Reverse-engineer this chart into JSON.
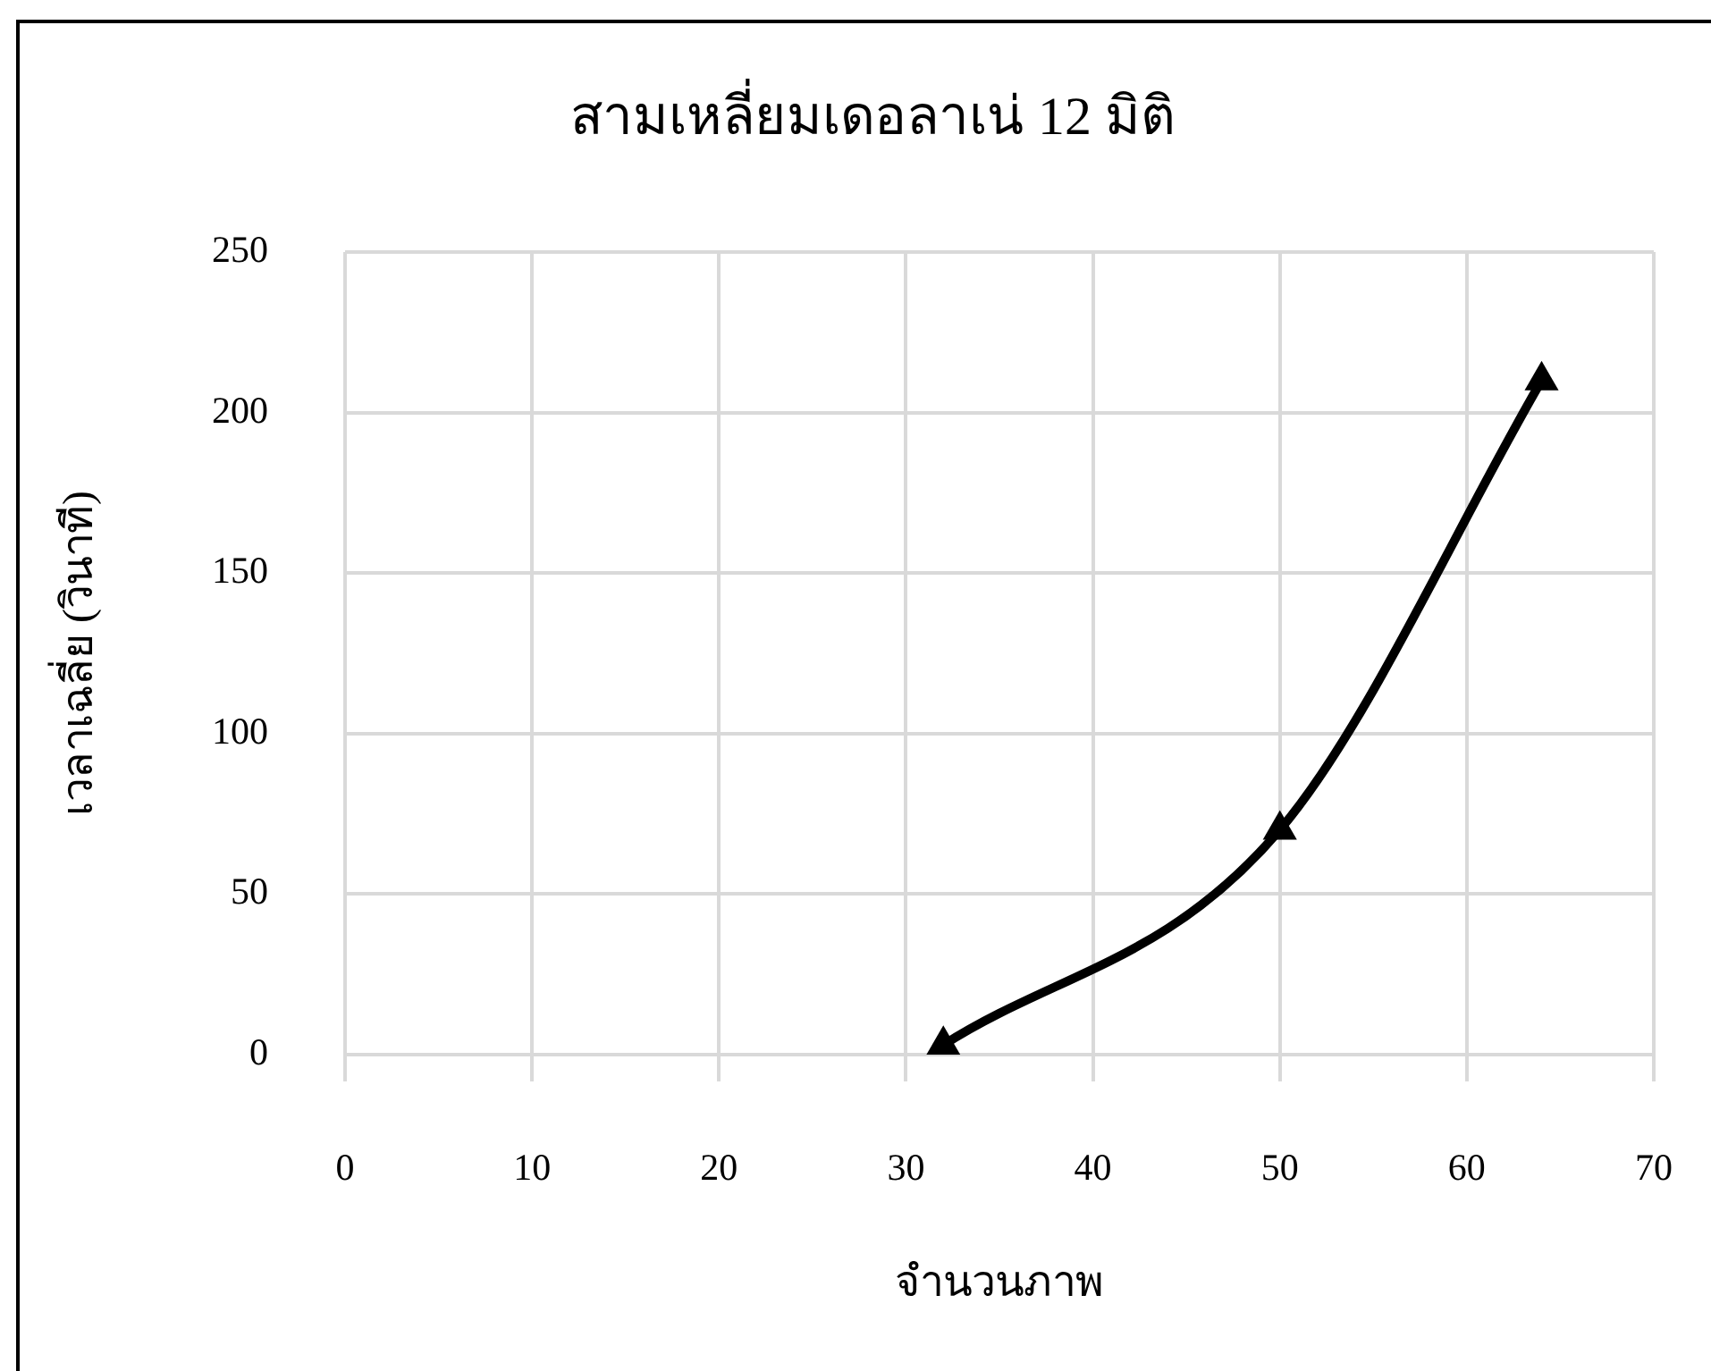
{
  "chart_data": {
    "type": "line",
    "title": "สามเหลี่ยมเดอลาเน่ 12 มิติ",
    "xlabel": "จำนวนภาพ",
    "ylabel": "เวลาเฉลี่ย (วินาที)",
    "x": [
      32,
      50,
      64
    ],
    "series": [
      {
        "color": "#000000",
        "values": [
          3,
          70,
          210
        ]
      }
    ],
    "xlim": [
      0,
      70
    ],
    "xticks": [
      0,
      10,
      20,
      30,
      40,
      50,
      60,
      70
    ],
    "ylim": [
      0,
      250
    ],
    "yticks": [
      0,
      50,
      100,
      150,
      200,
      250
    ],
    "grid": true,
    "marker": "triangle",
    "line_style": "solid"
  }
}
